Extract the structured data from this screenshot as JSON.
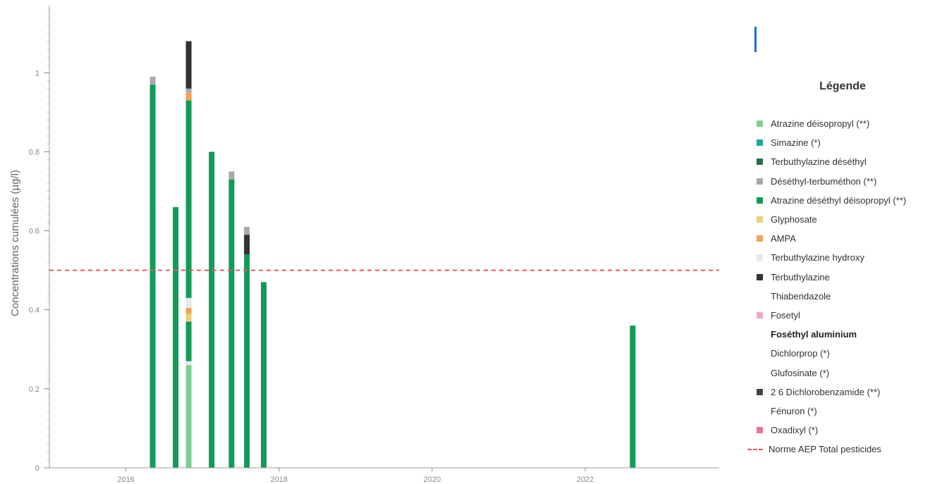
{
  "chart_data": {
    "type": "bar",
    "stacked": true,
    "ylabel": "Concentrations cumulées (µg/l)",
    "xlim": [
      2015,
      2023.75
    ],
    "ylim": [
      0,
      1.17
    ],
    "x_ticks": [
      2016,
      2018,
      2020,
      2022
    ],
    "x_tick_labels": [
      "2016",
      "2018",
      "2020",
      "2022"
    ],
    "y_ticks": [
      0,
      0.2,
      0.4,
      0.6,
      0.8,
      1
    ],
    "y_tick_labels": [
      "0",
      "0.2",
      "0.4",
      "0.6",
      "0.8",
      "1"
    ],
    "grid": false,
    "legend_position": "right",
    "legend_title": "Légende",
    "threshold": {
      "name": "Norme AEP Total pesticides",
      "value": 0.5,
      "color": "#e05a6a"
    },
    "series": [
      {
        "name": "Atrazine déisopropyl (**)",
        "color": "#7ccf8f"
      },
      {
        "name": "Simazine (*)",
        "color": "#1fa79b"
      },
      {
        "name": "Terbuthylazine déséthyl",
        "color": "#2c6b4a"
      },
      {
        "name": "Déséthyl-terbuméthon (**)",
        "color": "#a9a9a9"
      },
      {
        "name": "Atrazine déséthyl déisopropyl (**)",
        "color": "#119a58"
      },
      {
        "name": "Glyphosate",
        "color": "#e9d27a"
      },
      {
        "name": "AMPA",
        "color": "#f0a35a"
      },
      {
        "name": "Terbuthylazine hydroxy",
        "color": "#e8e8e8"
      },
      {
        "name": "Terbuthylazine",
        "color": "#333333"
      },
      {
        "name": "Thiabendazole",
        "color": ""
      },
      {
        "name": "Fosetyl",
        "color": "#f3a6c8"
      },
      {
        "name": "Foséthyl aluminium",
        "color": ""
      },
      {
        "name": "Dichlorprop (*)",
        "color": ""
      },
      {
        "name": "Glufosinate (*)",
        "color": ""
      },
      {
        "name": "2 6 Dichlorobenzamide (**)",
        "color": "#444444"
      },
      {
        "name": "Fénuron (*)",
        "color": ""
      },
      {
        "name": "Oxadixyl (*)",
        "color": "#e8739a"
      }
    ],
    "bars": [
      {
        "x": 2016.35,
        "segments": [
          {
            "series": "Atrazine déséthyl déisopropyl (**)",
            "value": 0.97
          },
          {
            "series": "Déséthyl-terbuméthon (**)",
            "value": 0.02
          }
        ]
      },
      {
        "x": 2016.65,
        "segments": [
          {
            "series": "Atrazine déséthyl déisopropyl (**)",
            "value": 0.66
          }
        ]
      },
      {
        "x": 2016.82,
        "segments": [
          {
            "series": "Atrazine déisopropyl (**)",
            "value": 0.26
          },
          {
            "series": "Terbuthylazine hydroxy",
            "value": 0.01
          },
          {
            "series": "Atrazine déséthyl déisopropyl (**)",
            "value": 0.1
          },
          {
            "series": "Glyphosate",
            "value": 0.02
          },
          {
            "series": "AMPA",
            "value": 0.015
          },
          {
            "series": "Terbuthylazine hydroxy",
            "value": 0.025
          },
          {
            "series": "Atrazine déséthyl déisopropyl (**)",
            "value": 0.5
          },
          {
            "series": "AMPA",
            "value": 0.02
          },
          {
            "series": "Déséthyl-terbuméthon (**)",
            "value": 0.01
          },
          {
            "series": "Terbuthylazine",
            "value": 0.12
          }
        ]
      },
      {
        "x": 2017.12,
        "segments": [
          {
            "series": "Atrazine déséthyl déisopropyl (**)",
            "value": 0.8
          }
        ]
      },
      {
        "x": 2017.38,
        "segments": [
          {
            "series": "Atrazine déséthyl déisopropyl (**)",
            "value": 0.73
          },
          {
            "series": "Déséthyl-terbuméthon (**)",
            "value": 0.02
          }
        ]
      },
      {
        "x": 2017.58,
        "segments": [
          {
            "series": "Atrazine déséthyl déisopropyl (**)",
            "value": 0.54
          },
          {
            "series": "Terbuthylazine",
            "value": 0.05
          },
          {
            "series": "Déséthyl-terbuméthon (**)",
            "value": 0.02
          }
        ]
      },
      {
        "x": 2017.8,
        "segments": [
          {
            "series": "Atrazine déséthyl déisopropyl (**)",
            "value": 0.47
          }
        ]
      },
      {
        "x": 2022.62,
        "segments": [
          {
            "series": "Atrazine déséthyl déisopropyl (**)",
            "value": 0.36
          }
        ]
      }
    ]
  }
}
